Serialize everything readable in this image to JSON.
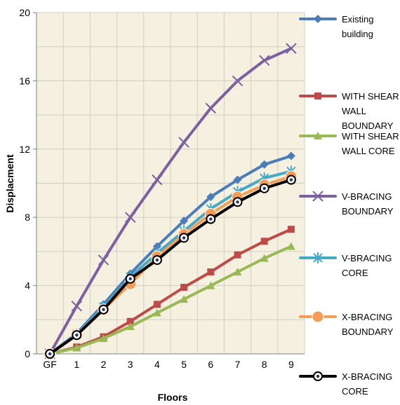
{
  "chart_data": {
    "type": "line",
    "title": "",
    "xlabel": "Floors",
    "ylabel": "Displacment",
    "categories": [
      "GF",
      "1",
      "2",
      "3",
      "4",
      "5",
      "6",
      "7",
      "8",
      "9"
    ],
    "ylim": [
      0,
      20
    ],
    "yticks": [
      "0",
      "4",
      "8",
      "12",
      "16",
      "20"
    ],
    "grid": true,
    "legend_position": "right",
    "plot_background": "#f5f0df",
    "series": [
      {
        "name": "Existing building",
        "color": "#4a7ebb",
        "marker": "diamond",
        "values": [
          0,
          1.2,
          2.9,
          4.7,
          6.3,
          7.8,
          9.2,
          10.2,
          11.1,
          11.6
        ]
      },
      {
        "name": "WITH SHEAR WALL BOUNDARY",
        "color": "#be4b48",
        "marker": "square",
        "values": [
          0,
          0.4,
          1.0,
          1.9,
          2.9,
          3.9,
          4.8,
          5.8,
          6.6,
          7.3
        ]
      },
      {
        "name": "WITH SHEAR WALL CORE",
        "color": "#98b954",
        "marker": "triangle",
        "values": [
          0,
          0.35,
          0.9,
          1.6,
          2.4,
          3.2,
          4.0,
          4.8,
          5.6,
          6.3
        ]
      },
      {
        "name": "V-BRACING BOUNDARY",
        "color": "#7d60a0",
        "marker": "x",
        "values": [
          0,
          2.8,
          5.5,
          8.0,
          10.2,
          12.4,
          14.4,
          16.0,
          17.2,
          17.9
        ]
      },
      {
        "name": "V-BRACING CORE",
        "color": "#46aac5",
        "marker": "star",
        "values": [
          0,
          1.15,
          2.75,
          4.5,
          5.9,
          7.2,
          8.5,
          9.5,
          10.3,
          10.7
        ]
      },
      {
        "name": "X-BRACING BOUNDARY",
        "color": "#f59d56",
        "marker": "circle",
        "values": [
          0,
          1.1,
          2.6,
          4.1,
          5.7,
          7.0,
          8.2,
          9.2,
          9.9,
          10.4
        ]
      },
      {
        "name": "X-BRACING CORE",
        "color": "#000000",
        "marker": "dot",
        "values": [
          0,
          1.1,
          2.6,
          4.4,
          5.5,
          6.8,
          7.9,
          8.9,
          9.7,
          10.2
        ]
      }
    ],
    "legend": [
      {
        "lines": [
          "Existing",
          "building"
        ]
      },
      {
        "lines": [
          "WITH SHEAR",
          "WALL",
          "BOUNDARY"
        ]
      },
      {
        "lines": [
          "WITH SHEAR",
          "WALL CORE"
        ]
      },
      {
        "lines": [
          "V-BRACING",
          "BOUNDARY"
        ]
      },
      {
        "lines": [
          "V-BRACING",
          "CORE"
        ]
      },
      {
        "lines": [
          "X-BRACING",
          "BOUNDARY"
        ]
      },
      {
        "lines": [
          "X-BRACING",
          "CORE"
        ]
      }
    ]
  }
}
